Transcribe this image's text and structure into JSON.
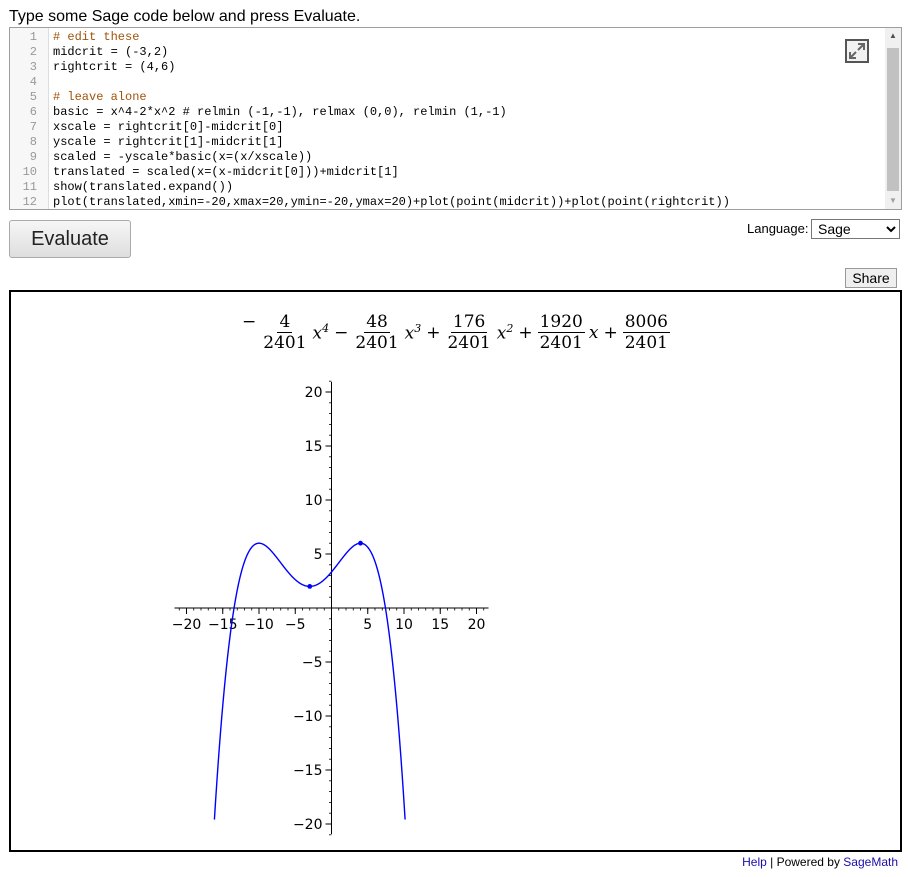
{
  "intro_text": "Type some Sage code below and press Evaluate.",
  "code_lines": [
    {
      "n": "1",
      "text": "# edit these"
    },
    {
      "n": "2",
      "text": "midcrit = (-3,2)"
    },
    {
      "n": "3",
      "text": "rightcrit = (4,6)"
    },
    {
      "n": "4",
      "text": ""
    },
    {
      "n": "5",
      "text": "# leave alone"
    },
    {
      "n": "6",
      "text": "basic = x^4-2*x^2 # relmin (-1,-1), relmax (0,0), relmin (1,-1)"
    },
    {
      "n": "7",
      "text": "xscale = rightcrit[0]-midcrit[0]"
    },
    {
      "n": "8",
      "text": "yscale = rightcrit[1]-midcrit[1]"
    },
    {
      "n": "9",
      "text": "scaled = -yscale*basic(x=(x/xscale))"
    },
    {
      "n": "10",
      "text": "translated = scaled(x=(x-midcrit[0]))+midcrit[1]"
    },
    {
      "n": "11",
      "text": "show(translated.expand())"
    },
    {
      "n": "12",
      "text": "plot(translated,xmin=-20,xmax=20,ymin=-20,ymax=20)+plot(point(midcrit))+plot(point(rightcrit))"
    }
  ],
  "evaluate_label": "Evaluate",
  "language_label": "Language:",
  "language_selected": "Sage",
  "share_label": "Share",
  "formula": {
    "lead_sign": "−",
    "terms": [
      {
        "num": "4",
        "den": "2401",
        "var": "x",
        "exp": "4",
        "after": "−"
      },
      {
        "num": "48",
        "den": "2401",
        "var": "x",
        "exp": "3",
        "after": "+"
      },
      {
        "num": "176",
        "den": "2401",
        "var": "x",
        "exp": "2",
        "after": "+"
      },
      {
        "num": "1920",
        "den": "2401",
        "var": "x",
        "exp": "",
        "after": "+"
      },
      {
        "num": "8006",
        "den": "2401",
        "var": "",
        "exp": "",
        "after": ""
      }
    ]
  },
  "chart_data": {
    "type": "line",
    "function": "-4/2401*x^4 - 48/2401*x^3 + 176/2401*x^2 + 1920/2401*x + 8006/2401",
    "coefficients": [
      -0.001666,
      -0.0199917,
      0.0733028,
      0.7996668,
      3.334444
    ],
    "xlim": [
      -20,
      20
    ],
    "ylim": [
      -20,
      20
    ],
    "xticks": [
      -20,
      -15,
      -10,
      -5,
      5,
      10,
      15,
      20
    ],
    "yticks": [
      -20,
      -15,
      -10,
      -5,
      5,
      10,
      15,
      20
    ],
    "xtick_labels": [
      "−20",
      "−15",
      "−10",
      "−5",
      "5",
      "10",
      "15",
      "20"
    ],
    "ytick_labels": [
      "−20",
      "−15",
      "−10",
      "−5",
      "5",
      "10",
      "15",
      "20"
    ],
    "points": [
      {
        "x": -3,
        "y": 2
      },
      {
        "x": 4,
        "y": 6
      }
    ],
    "line_color": "#0000ff",
    "grid": false,
    "title": "",
    "xlabel": "",
    "ylabel": ""
  },
  "footer": {
    "help": "Help",
    "separator": " | Powered by ",
    "sagemath": "SageMath"
  }
}
